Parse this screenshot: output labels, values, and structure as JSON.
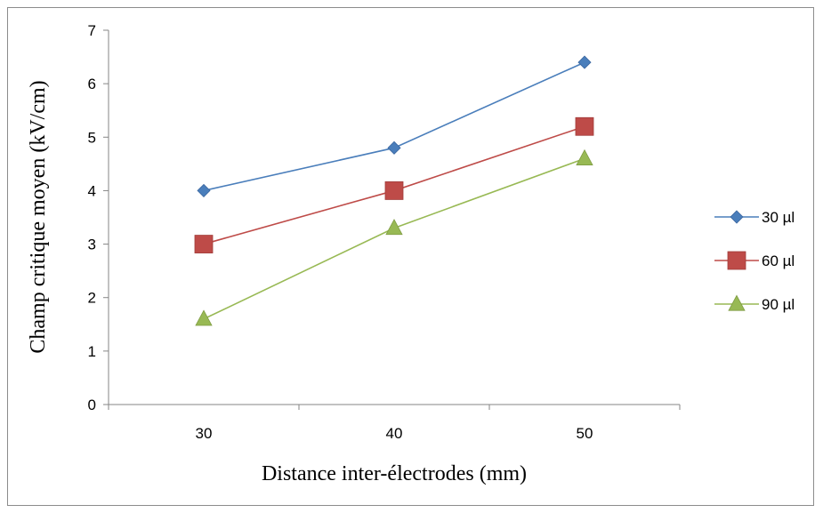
{
  "chart_data": {
    "type": "line",
    "xlabel": "Distance inter-électrodes (mm)",
    "ylabel": "Champ critique moyen (kV/cm)",
    "x": [
      30,
      40,
      50
    ],
    "xticks": [
      "30",
      "40",
      "50"
    ],
    "yticks": [
      "0",
      "1",
      "2",
      "3",
      "4",
      "5",
      "6",
      "7"
    ],
    "ylim": [
      0,
      7
    ],
    "grid": false,
    "legend_position": "right",
    "series": [
      {
        "name": "30 µl",
        "values": [
          4.0,
          4.8,
          6.4
        ],
        "color": "#4a7ebb",
        "marker": "diamond"
      },
      {
        "name": "60 µl",
        "values": [
          3.0,
          4.0,
          5.2
        ],
        "color": "#be4b48",
        "marker": "square"
      },
      {
        "name": "90 µl",
        "values": [
          1.6,
          3.3,
          4.6
        ],
        "color": "#98b954",
        "marker": "triangle"
      }
    ]
  }
}
